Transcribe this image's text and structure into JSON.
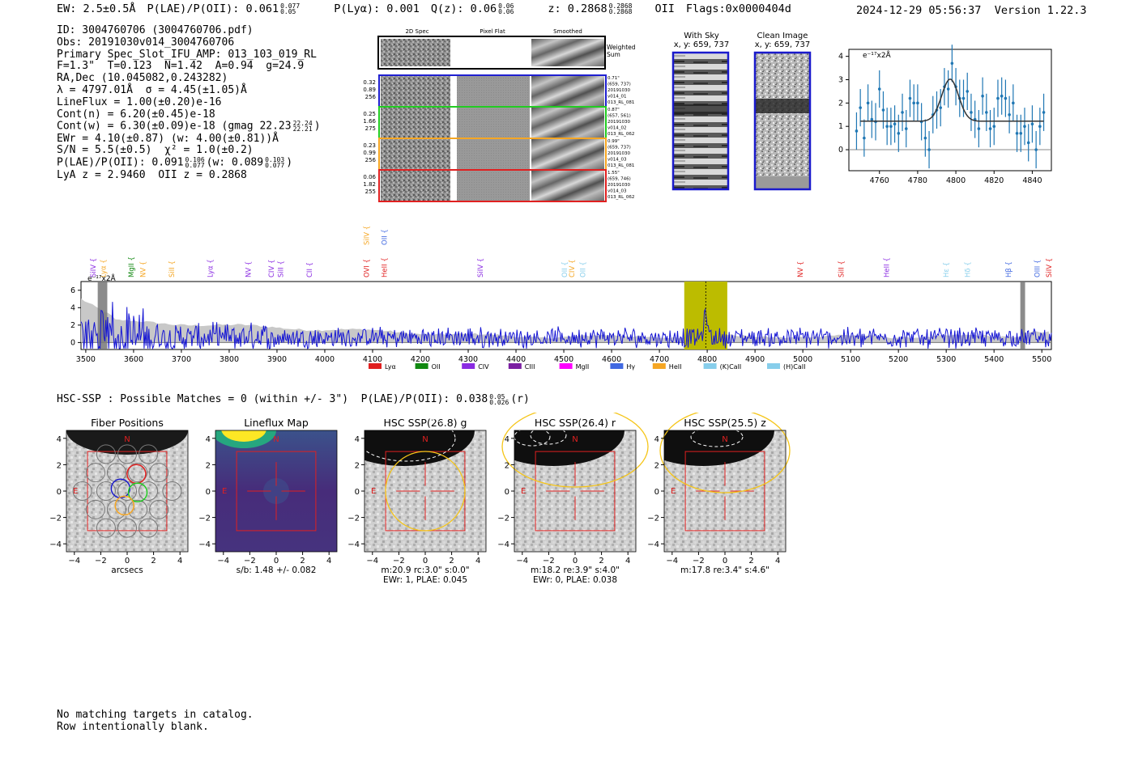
{
  "header": {
    "ew": "EW: 2.5±0.5Å",
    "plae_label": "P(LAE)/P(OII): 0.061",
    "plae_up": "0.077",
    "plae_lo": "0.05",
    "plya": "P(Lyα): 0.001",
    "qz_label": "Q(z): 0.06",
    "qz_up": "0.06",
    "qz_lo": "0.06",
    "z_label": "z: 0.2868",
    "z_up": "0.2868",
    "z_lo": "0.2868",
    "z_line": "OII",
    "flags": "Flags:0x0000404d",
    "timestamp": "2024-12-29 05:56:37",
    "version": "Version 1.22.3"
  },
  "info": {
    "id": "ID: 3004760706 (3004760706.pdf)",
    "obs": "Obs: 20191030v014_3004760706",
    "primary": "Primary Spec_Slot_IFU_AMP: 013_103_019_RL",
    "fibers": "F=1.3\"  T=0.123  N=1.42  A=0.94  g=24.9",
    "radec": "RA,Dec (10.045082,0.243282)",
    "lambda": "λ = 4797.01Å  σ = 4.45(±1.05)Å",
    "lineflux": "LineFlux = 1.00(±0.20)e-16",
    "contn": "Cont(n) = 6.20(±0.45)e-18",
    "contw": "Cont(w) = 6.30(±0.09)e-18 (gmag 22.23",
    "contw_up": "22.24",
    "contw_lo": "22.21",
    "contw_close": ")",
    "ewr": "EWr = 4.10(±0.87) (w: 4.00(±0.81))Å",
    "sn": "S/N = 5.5(±0.5)  χ² = 1.0(±0.2)",
    "plae2": "P(LAE)/P(OII): 0.091",
    "plae2_up": "0.106",
    "plae2_lo": "0.077",
    "plae2_w": "(w: 0.089",
    "plae2_w_up": "0.103",
    "plae2_w_lo": "0.077",
    "plae2_close": ")",
    "lyaz": "LyA z = 2.9460  OII z = 0.2868"
  },
  "cutouts": {
    "col_headers": [
      "2D Spec",
      "Pixel Flat",
      "Smoothed"
    ],
    "weighted_sum": [
      "Weighted",
      "Sum"
    ],
    "rows": [
      {
        "vals": [
          "0.32",
          "0.89",
          "256"
        ],
        "notes": [
          "0.71\"",
          "(659, 737)",
          "20191030",
          "v014_01",
          "013_RL_081"
        ],
        "color": "#1f1fd0"
      },
      {
        "vals": [
          "0.25",
          "1.66",
          "275"
        ],
        "notes": [
          "0.87\"",
          "(657, 561)",
          "20191030",
          "v014_02",
          "013_RL_062"
        ],
        "color": "#22cc22"
      },
      {
        "vals": [
          "0.23",
          "0.99",
          "256"
        ],
        "notes": [
          "0.99\"",
          "(659, 737)",
          "20191030",
          "v014_03",
          "013_RL_081"
        ],
        "color": "#f5a623"
      },
      {
        "vals": [
          "0.06",
          "1.82",
          "255"
        ],
        "notes": [
          "1.55\"",
          "(659, 746)",
          "20191030",
          "v014_03",
          "013_RL_062"
        ],
        "color": "#e02020"
      }
    ],
    "with_sky": {
      "title": "With Sky",
      "coords": "x, y: 659, 737"
    },
    "clean": {
      "title": "Clean Image",
      "coords": "x, y: 659, 737"
    }
  },
  "chart_data": [
    {
      "type": "scatter",
      "name": "line-fit",
      "ylabel": "e⁻¹⁷x2Å",
      "xlim": [
        4744,
        4850
      ],
      "ylim": [
        -0.9,
        4.3
      ],
      "xticks": [
        4760,
        4780,
        4800,
        4820,
        4840
      ],
      "yticks": [
        0,
        1,
        2,
        3,
        4
      ],
      "x": [
        4748,
        4750,
        4752,
        4754,
        4756,
        4758,
        4760,
        4762,
        4764,
        4766,
        4768,
        4770,
        4772,
        4774,
        4776,
        4778,
        4780,
        4782,
        4784,
        4786,
        4788,
        4790,
        4792,
        4794,
        4796,
        4798,
        4800,
        4802,
        4804,
        4806,
        4808,
        4810,
        4812,
        4814,
        4816,
        4818,
        4820,
        4822,
        4824,
        4826,
        4828,
        4830,
        4832,
        4834,
        4836,
        4838,
        4840,
        4842,
        4844,
        4846
      ],
      "y": [
        0.8,
        1.8,
        0.5,
        2.0,
        1.3,
        1.2,
        2.6,
        1.7,
        1.0,
        1.0,
        1.1,
        0.7,
        1.6,
        0.9,
        2.2,
        2.0,
        2.0,
        1.2,
        0.5,
        0.0,
        1.5,
        1.7,
        1.8,
        2.7,
        2.6,
        3.7,
        2.7,
        2.2,
        2.2,
        2.5,
        1.6,
        1.3,
        0.9,
        2.3,
        1.6,
        0.9,
        1.0,
        2.2,
        2.3,
        2.2,
        1.5,
        2.0,
        0.7,
        0.7,
        1.0,
        0.3,
        1.1,
        0.0,
        1.0,
        1.6
      ],
      "yerr": [
        0.8,
        0.8,
        0.8,
        0.8,
        0.8,
        0.8,
        0.8,
        0.8,
        0.8,
        0.8,
        0.8,
        0.8,
        0.8,
        0.8,
        0.8,
        0.8,
        0.8,
        0.8,
        0.8,
        0.8,
        0.8,
        0.8,
        0.8,
        0.8,
        0.8,
        0.8,
        0.8,
        0.8,
        0.8,
        0.8,
        0.8,
        0.8,
        0.8,
        0.8,
        0.8,
        0.8,
        0.8,
        0.8,
        0.8,
        0.8,
        0.8,
        0.8,
        0.8,
        0.8,
        0.8,
        0.8,
        0.8,
        0.8,
        0.8,
        0.8
      ],
      "fit": {
        "continuum": 1.22,
        "amplitude": 1.8,
        "center": 4797,
        "sigma": 4.45,
        "xrange": [
          4750,
          4846
        ]
      }
    },
    {
      "type": "line",
      "name": "full-spectrum",
      "ylabel": "e⁻¹⁷x2Å",
      "xlim": [
        3490,
        5520
      ],
      "ylim": [
        -0.8,
        7.0
      ],
      "xticks": [
        3500,
        3600,
        3700,
        3800,
        3900,
        4000,
        4100,
        4200,
        4300,
        4400,
        4500,
        4600,
        4700,
        4800,
        4900,
        5000,
        5100,
        5200,
        5300,
        5400,
        5500
      ],
      "yticks": [
        0,
        2,
        4,
        6
      ],
      "highlight": [
        4752,
        4842
      ],
      "line_center": 4797,
      "peak_height": 3.3,
      "gray_bands": [
        [
          3525,
          3545
        ],
        [
          5455,
          5465
        ]
      ],
      "emission_lines": [
        {
          "label": "SiIV",
          "wave": 3515,
          "color": "#8a2be2"
        },
        {
          "label": "Lyα",
          "wave": 3537,
          "color": "#f5a623"
        },
        {
          "label": "MgII",
          "wave": 3595,
          "color": "#118811"
        },
        {
          "label": "NV",
          "wave": 3620,
          "color": "#f5a623"
        },
        {
          "label": "SiII",
          "wave": 3680,
          "color": "#f5a623"
        },
        {
          "label": "Lyα",
          "wave": 3760,
          "color": "#8a2be2"
        },
        {
          "label": "NV",
          "wave": 3840,
          "color": "#8a2be2"
        },
        {
          "label": "CIV",
          "wave": 3888,
          "color": "#8a2be2"
        },
        {
          "label": "SiII",
          "wave": 3908,
          "color": "#8a2be2"
        },
        {
          "label": "CII",
          "wave": 3968,
          "color": "#8a2be2"
        },
        {
          "label": "OVI",
          "wave": 4087,
          "color": "#e02020"
        },
        {
          "label": "HeII",
          "wave": 4125,
          "color": "#e02020"
        },
        {
          "label": "SiIV",
          "wave": 4325,
          "color": "#8a2be2"
        },
        {
          "label": "OII",
          "wave": 4502,
          "color": "#87ceeb"
        },
        {
          "label": "CIV",
          "wave": 4517,
          "color": "#f5a623"
        },
        {
          "label": "OII",
          "wave": 4540,
          "color": "#87ceeb"
        },
        {
          "label": "NV",
          "wave": 4995,
          "color": "#e02020"
        },
        {
          "label": "SiII",
          "wave": 5080,
          "color": "#e02020"
        },
        {
          "label": "HeII",
          "wave": 5175,
          "color": "#8a2be2"
        },
        {
          "label": "Hε",
          "wave": 5300,
          "color": "#87ceeb"
        },
        {
          "label": "Hδ",
          "wave": 5345,
          "color": "#87ceeb"
        },
        {
          "label": "Hβ",
          "wave": 5430,
          "color": "#4169e1"
        },
        {
          "label": "OIII",
          "wave": 5490,
          "color": "#4169e1"
        },
        {
          "label": "SiIV",
          "wave": 5515,
          "color": "#e02020"
        }
      ],
      "top_labels": [
        {
          "label": "SiIV",
          "wave": 4087,
          "color": "#f5a623"
        },
        {
          "label": "OII",
          "wave": 4125,
          "color": "#4169e1"
        }
      ],
      "legend": [
        {
          "label": "Lyα",
          "color": "#e02020"
        },
        {
          "label": "OII",
          "color": "#118811"
        },
        {
          "label": "CIV",
          "color": "#8a2be2"
        },
        {
          "label": "CIII",
          "color": "#7b1fa2"
        },
        {
          "label": "MgII",
          "color": "#ff00ff"
        },
        {
          "label": "Hγ",
          "color": "#4169e1"
        },
        {
          "label": "HeII",
          "color": "#f5a623"
        },
        {
          "label": "(K)CaII",
          "color": "#87ceeb"
        },
        {
          "label": "(H)CaII",
          "color": "#87ceeb"
        }
      ]
    }
  ],
  "hsc": {
    "summary": "HSC-SSP : Possible Matches = 0 (within +/- 3\")  P(LAE)/P(OII): 0.038",
    "summary_up": "0.05",
    "summary_lo": "0.026",
    "summary_band": "(r)",
    "panels": [
      {
        "title": "Fiber Positions",
        "caption1": "arcsecs",
        "caption2": ""
      },
      {
        "title": "Lineflux Map",
        "caption1": "s/b: 1.48 +/- 0.082",
        "caption2": ""
      },
      {
        "title": "HSC SSP(26.8) g",
        "caption1": "m:20.9 rc:3.0\"  s:0.0\"",
        "caption2": "EWr: 1, PLAE: 0.045"
      },
      {
        "title": "HSC SSP(26.4) r",
        "caption1": "m:18.2  re:3.9\"  s:4.0\"",
        "caption2": "EWr: 0, PLAE: 0.038"
      },
      {
        "title": "HSC SSP(25.5) z",
        "caption1": "m:17.8  re:3.4\"  s:4.6\"",
        "caption2": ""
      }
    ],
    "axis_ticks_x": [
      "−4",
      "−2",
      "0",
      "2",
      "4"
    ],
    "axis_ticks_y": [
      "4",
      "2",
      "0",
      "−2",
      "−4"
    ],
    "north": "N",
    "east": "E"
  },
  "footer": {
    "line1": "No matching targets in catalog.",
    "line2": "Row intentionally blank."
  }
}
